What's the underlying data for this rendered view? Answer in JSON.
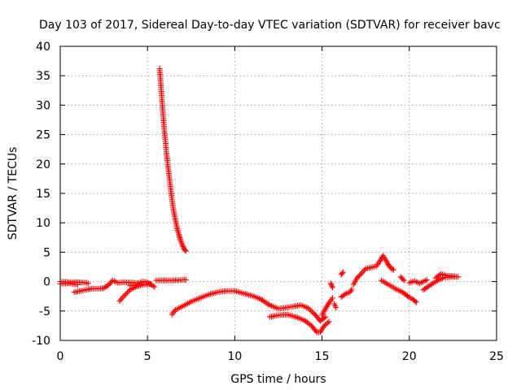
{
  "chart_data": {
    "type": "scatter",
    "title": "Day 103 of 2017, Sidereal Day-to-day VTEC variation (SDTVAR) for receiver bavc",
    "xlabel": "GPS time / hours",
    "ylabel": "SDTVAR / TECUs",
    "xlim": [
      0,
      25
    ],
    "ylim": [
      -10,
      40
    ],
    "xticks": [
      0,
      5,
      10,
      15,
      20,
      25
    ],
    "yticks": [
      -10,
      -5,
      0,
      5,
      10,
      15,
      20,
      25,
      30,
      35,
      40
    ],
    "grid": true,
    "marker": "plus",
    "color": "#ff0000",
    "series": [
      {
        "name": "SDTVAR",
        "segments": [
          [
            [
              0.0,
              0.0
            ],
            [
              0.5,
              -0.1
            ],
            [
              1.0,
              -0.1
            ],
            [
              1.5,
              -0.2
            ],
            [
              1.6,
              -0.3
            ]
          ],
          [
            [
              0.0,
              -0.4
            ],
            [
              0.5,
              -0.3
            ],
            [
              1.0,
              -0.5
            ]
          ],
          [
            [
              0.8,
              -1.8
            ],
            [
              1.3,
              -1.5
            ],
            [
              1.8,
              -1.2
            ],
            [
              2.2,
              -1.2
            ],
            [
              2.5,
              -1.1
            ],
            [
              2.8,
              -0.5
            ],
            [
              3.0,
              0.2
            ],
            [
              3.3,
              -0.2
            ],
            [
              3.7,
              -0.1
            ],
            [
              4.2,
              -0.2
            ],
            [
              4.5,
              -0.3
            ],
            [
              4.7,
              0.0
            ],
            [
              5.0,
              -0.1
            ],
            [
              5.4,
              -0.9
            ]
          ],
          [
            [
              3.4,
              -3.3
            ],
            [
              3.7,
              -2.3
            ],
            [
              4.0,
              -1.4
            ],
            [
              4.4,
              -0.8
            ],
            [
              4.8,
              -0.5
            ],
            [
              5.2,
              -0.4
            ]
          ],
          [
            [
              4.0,
              -0.7
            ],
            [
              4.6,
              -0.5
            ],
            [
              5.0,
              -0.4
            ]
          ],
          [
            [
              5.5,
              0.2
            ],
            [
              6.0,
              0.2
            ],
            [
              6.5,
              0.2
            ],
            [
              7.0,
              0.3
            ],
            [
              7.2,
              0.3
            ]
          ],
          [
            [
              5.7,
              36.2
            ],
            [
              5.8,
              32.0
            ],
            [
              5.9,
              28.0
            ],
            [
              6.0,
              24.5
            ],
            [
              6.1,
              21.5
            ],
            [
              6.2,
              19.0
            ],
            [
              6.3,
              16.5
            ],
            [
              6.4,
              14.0
            ],
            [
              6.5,
              12.0
            ],
            [
              6.6,
              10.5
            ],
            [
              6.7,
              9.0
            ],
            [
              6.8,
              8.0
            ],
            [
              6.9,
              7.0
            ],
            [
              7.0,
              6.2
            ],
            [
              7.1,
              5.5
            ],
            [
              7.2,
              5.2
            ]
          ],
          [
            [
              6.4,
              -5.6
            ],
            [
              6.6,
              -4.8
            ],
            [
              7.0,
              -4.2
            ],
            [
              7.5,
              -3.4
            ],
            [
              8.0,
              -2.8
            ],
            [
              8.5,
              -2.2
            ],
            [
              9.0,
              -1.8
            ],
            [
              9.5,
              -1.6
            ],
            [
              10.0,
              -1.6
            ],
            [
              10.5,
              -2.0
            ],
            [
              11.0,
              -2.4
            ],
            [
              11.5,
              -3.0
            ],
            [
              12.0,
              -4.0
            ],
            [
              12.5,
              -4.6
            ],
            [
              13.0,
              -4.4
            ],
            [
              13.4,
              -4.2
            ],
            [
              13.8,
              -4.0
            ],
            [
              14.2,
              -4.5
            ],
            [
              14.6,
              -5.6
            ],
            [
              14.9,
              -6.7
            ],
            [
              15.2,
              -6.0
            ]
          ],
          [
            [
              12.0,
              -6.0
            ],
            [
              12.5,
              -5.7
            ],
            [
              13.0,
              -5.6
            ],
            [
              13.5,
              -6.0
            ],
            [
              14.0,
              -6.6
            ],
            [
              14.4,
              -7.5
            ],
            [
              14.7,
              -8.6
            ],
            [
              14.9,
              -8.6
            ],
            [
              15.1,
              -7.6
            ],
            [
              15.4,
              -6.8
            ]
          ],
          [
            [
              15.0,
              -5.7
            ],
            [
              15.2,
              -4.6
            ],
            [
              15.4,
              -3.6
            ],
            [
              15.6,
              -2.8
            ]
          ],
          [
            [
              15.5,
              -0.3
            ],
            [
              15.6,
              -1.0
            ]
          ],
          [
            [
              15.7,
              -3.8
            ],
            [
              15.8,
              -4.4
            ]
          ],
          [
            [
              16.1,
              -2.6
            ],
            [
              16.4,
              -2.0
            ],
            [
              16.6,
              -1.8
            ],
            [
              16.7,
              -1.3
            ]
          ],
          [
            [
              16.1,
              1.2
            ],
            [
              16.2,
              1.6
            ]
          ],
          [
            [
              16.8,
              -0.5
            ],
            [
              17.0,
              0.6
            ],
            [
              17.2,
              1.2
            ],
            [
              17.5,
              2.2
            ],
            [
              17.8,
              2.4
            ],
            [
              18.1,
              2.6
            ],
            [
              18.3,
              3.4
            ],
            [
              18.5,
              4.4
            ],
            [
              18.7,
              3.4
            ],
            [
              18.9,
              2.4
            ],
            [
              19.1,
              2.0
            ]
          ],
          [
            [
              18.4,
              0.2
            ],
            [
              18.8,
              -0.5
            ],
            [
              19.2,
              -1.2
            ],
            [
              19.6,
              -1.8
            ],
            [
              19.9,
              -2.4
            ]
          ],
          [
            [
              19.9,
              -2.5
            ],
            [
              20.2,
              -3.0
            ],
            [
              20.4,
              -3.5
            ]
          ],
          [
            [
              19.5,
              0.8
            ],
            [
              19.7,
              0.2
            ]
          ],
          [
            [
              20.0,
              -0.2
            ],
            [
              20.3,
              0.1
            ],
            [
              20.6,
              -0.3
            ],
            [
              21.0,
              0.3
            ]
          ],
          [
            [
              20.8,
              -1.4
            ],
            [
              21.1,
              -0.8
            ],
            [
              21.4,
              -0.2
            ],
            [
              21.7,
              0.3
            ],
            [
              22.0,
              0.7
            ],
            [
              22.5,
              0.8
            ],
            [
              22.8,
              0.8
            ]
          ],
          [
            [
              21.5,
              0.6
            ],
            [
              21.8,
              1.3
            ],
            [
              22.2,
              1.0
            ],
            [
              22.6,
              0.9
            ]
          ]
        ]
      }
    ]
  }
}
